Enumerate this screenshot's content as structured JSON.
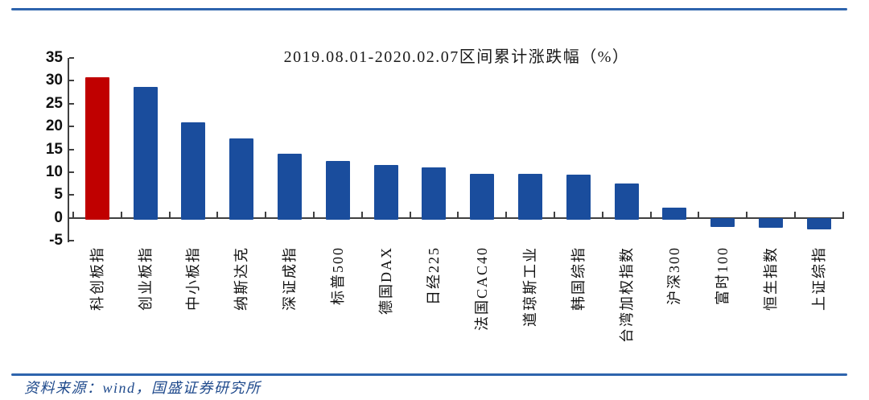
{
  "page": {
    "source_note": "资料来源：wind，国盛证券研究所"
  },
  "chart_data": {
    "type": "bar",
    "title": "2019.08.01-2020.02.07区间累计涨跌幅（%）",
    "categories": [
      "科创板指",
      "创业板指",
      "中小板指",
      "纳斯达克",
      "深证成指",
      "标普500",
      "德国DAX",
      "日经225",
      "法国CAC40",
      "道琼斯工业",
      "韩国综指",
      "台湾加权指数",
      "沪深300",
      "富时100",
      "恒生指数",
      "上证综指"
    ],
    "values": [
      30.7,
      28.7,
      20.9,
      17.4,
      14.0,
      12.4,
      11.6,
      11.0,
      9.7,
      9.7,
      9.5,
      7.6,
      2.2,
      -1.8,
      -2.0,
      -2.3
    ],
    "highlight_index": 0,
    "highlight_color": "#c00000",
    "bar_color": "#1a4d9d",
    "ylim": [
      -5,
      35
    ],
    "ytick_step": 5,
    "grid": false,
    "legend_position": "none",
    "xlabel": "",
    "ylabel": ""
  },
  "colors": {
    "divider_blue": "#2e64ad",
    "source_text_blue": "#1f4a8c",
    "axis_gray": "#404040"
  }
}
